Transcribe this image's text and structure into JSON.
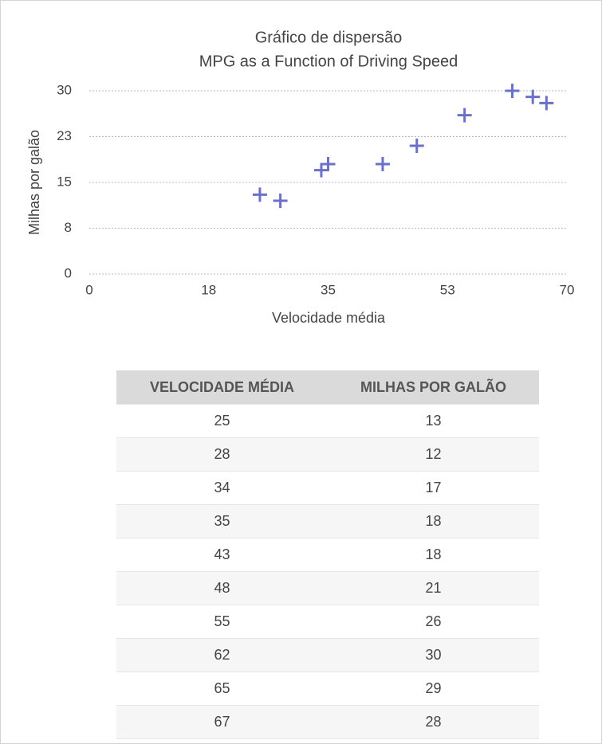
{
  "chart_data": {
    "type": "scatter",
    "title": "Gráfico de dispersão",
    "subtitle": "MPG as a Function of Driving Speed",
    "x_label": "Velocidade média",
    "y_label": "Milhas por galão",
    "series": [
      {
        "color": "#6b70c9",
        "x": [
          25,
          28,
          34,
          35,
          43,
          48,
          55,
          62,
          65,
          67
        ],
        "values": [
          13,
          12,
          17,
          18,
          18,
          21,
          26,
          30,
          29,
          28
        ]
      }
    ],
    "xlim": [
      0,
      70
    ],
    "xticks": [
      0,
      {
        "value": 17.5,
        "label": "18"
      },
      35,
      {
        "value": 52.5,
        "label": "53"
      },
      70
    ],
    "ylim": [
      0,
      30
    ],
    "yticks": [
      0,
      {
        "value": 7.5,
        "label": "8"
      },
      15,
      {
        "value": 22.5,
        "label": "23"
      },
      30
    ],
    "grid": true
  },
  "table": {
    "header": [
      "VELOCIDADE MÉDIA",
      "MILHAS POR GALÃO"
    ],
    "rows": [
      [
        "25",
        "13"
      ],
      [
        "28",
        "12"
      ],
      [
        "34",
        "17"
      ],
      [
        "35",
        "18"
      ],
      [
        "43",
        "18"
      ],
      [
        "48",
        "21"
      ],
      [
        "55",
        "26"
      ],
      [
        "62",
        "30"
      ],
      [
        "65",
        "29"
      ],
      [
        "67",
        "28"
      ]
    ]
  }
}
